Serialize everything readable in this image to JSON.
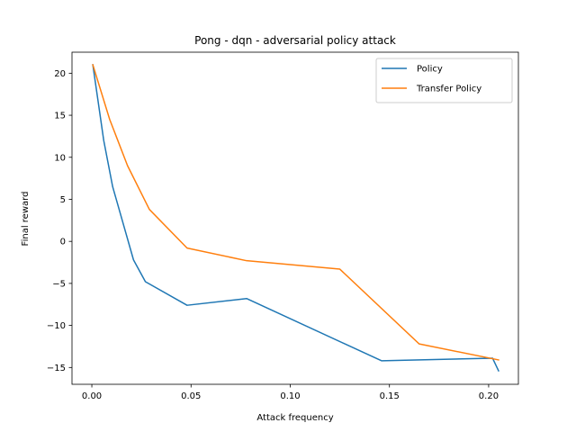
{
  "chart_data": {
    "type": "line",
    "title": "Pong - dqn - adversarial policy attack",
    "xlabel": "Attack frequency",
    "ylabel": "Final reward",
    "xlim": [
      -0.01,
      0.215
    ],
    "ylim": [
      -17,
      22.5
    ],
    "xticks": [
      0.0,
      0.05,
      0.1,
      0.15,
      0.2
    ],
    "xtick_labels": [
      "0.00",
      "0.05",
      "0.10",
      "0.15",
      "0.20"
    ],
    "yticks": [
      -15,
      -10,
      -5,
      0,
      5,
      10,
      15,
      20
    ],
    "ytick_labels": [
      "−15",
      "−10",
      "−5",
      "0",
      "5",
      "10",
      "15",
      "20"
    ],
    "grid": false,
    "legend_position": "upper right",
    "series": [
      {
        "name": "Policy",
        "color": "#1f77b4",
        "x": [
          0.0005,
          0.006,
          0.0105,
          0.021,
          0.027,
          0.048,
          0.078,
          0.146,
          0.202,
          0.205
        ],
        "y": [
          21,
          12,
          6.5,
          -2.2,
          -4.8,
          -7.6,
          -6.8,
          -14.2,
          -13.9,
          -15.4
        ]
      },
      {
        "name": "Transfer Policy",
        "color": "#ff7f0e",
        "x": [
          0.0005,
          0.009,
          0.018,
          0.029,
          0.048,
          0.078,
          0.125,
          0.165,
          0.205
        ],
        "y": [
          21,
          14.5,
          9,
          3.8,
          -0.8,
          -2.3,
          -3.3,
          -12.2,
          -14.1
        ]
      }
    ]
  }
}
